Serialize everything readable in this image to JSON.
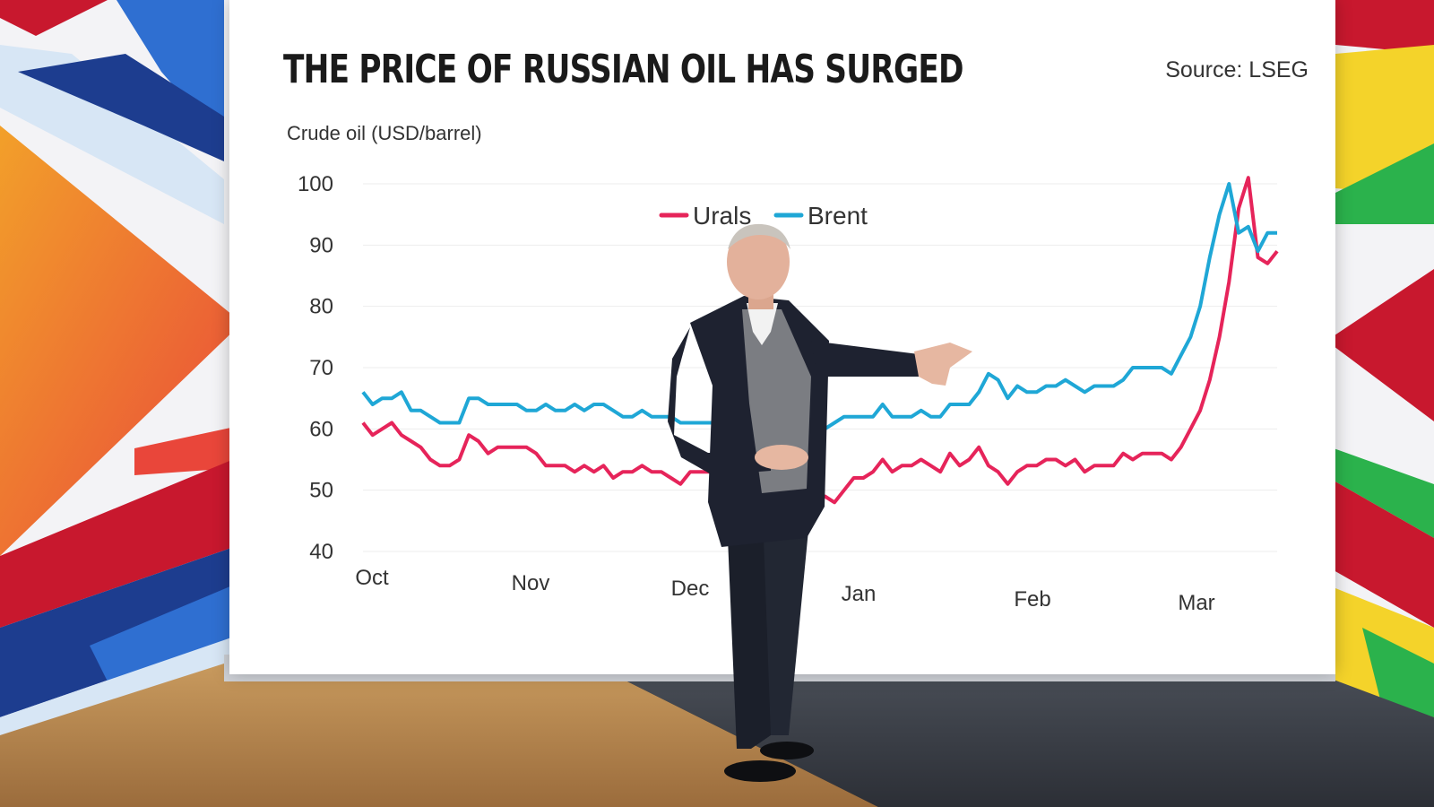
{
  "chart_data": {
    "type": "line",
    "title": "THE PRICE OF RUSSIAN OIL HAS SURGED",
    "source": "Source: LSEG",
    "ylabel": "Crude oil (USD/barrel)",
    "ylim": [
      40,
      100
    ],
    "yticks": [
      "100",
      "90",
      "80",
      "70",
      "60",
      "50",
      "40"
    ],
    "x_tick_labels": [
      "Oct",
      "Nov",
      "Dec",
      "Jan",
      "Feb",
      "Mar"
    ],
    "legend_placement": "top-center",
    "grid": true,
    "series": [
      {
        "name": "Urals",
        "color": "#e6245a",
        "values": [
          61,
          59,
          60,
          61,
          59,
          58,
          57,
          55,
          54,
          54,
          55,
          59,
          58,
          56,
          57,
          57,
          57,
          57,
          56,
          54,
          54,
          54,
          53,
          54,
          53,
          54,
          52,
          53,
          53,
          54,
          53,
          53,
          52,
          51,
          53,
          53,
          53,
          52,
          51,
          51,
          50,
          49,
          49,
          49,
          48,
          48,
          47,
          48,
          49,
          48,
          50,
          52,
          52,
          53,
          55,
          53,
          54,
          54,
          55,
          54,
          53,
          56,
          54,
          55,
          57,
          54,
          53,
          51,
          53,
          54,
          54,
          55,
          55,
          54,
          55,
          53,
          54,
          54,
          54,
          56,
          55,
          56,
          56,
          56,
          55,
          57,
          60,
          63,
          68,
          75,
          84,
          96,
          101,
          88,
          87,
          89
        ]
      },
      {
        "name": "Brent",
        "color": "#1fa7d6",
        "values": [
          66,
          64,
          65,
          65,
          66,
          63,
          63,
          62,
          61,
          61,
          61,
          65,
          65,
          64,
          64,
          64,
          64,
          63,
          63,
          64,
          63,
          63,
          64,
          63,
          64,
          64,
          63,
          62,
          62,
          63,
          62,
          62,
          62,
          61,
          61,
          61,
          61,
          61,
          60,
          61,
          60,
          60,
          60,
          60,
          60,
          60,
          59,
          60,
          60,
          61,
          62,
          62,
          62,
          62,
          64,
          62,
          62,
          62,
          63,
          62,
          62,
          64,
          64,
          64,
          66,
          69,
          68,
          65,
          67,
          66,
          66,
          67,
          67,
          68,
          67,
          66,
          67,
          67,
          67,
          68,
          70,
          70,
          70,
          70,
          69,
          72,
          75,
          80,
          88,
          95,
          100,
          92,
          93,
          89,
          92,
          92
        ]
      }
    ]
  },
  "scene": {
    "studio_floor": "#b98a52",
    "backdrop_colors": [
      "#e9463a",
      "#2f6fd1",
      "#f2a02a",
      "#d7e6f5",
      "#f4d32a",
      "#2bb24c",
      "#c8182e"
    ]
  }
}
